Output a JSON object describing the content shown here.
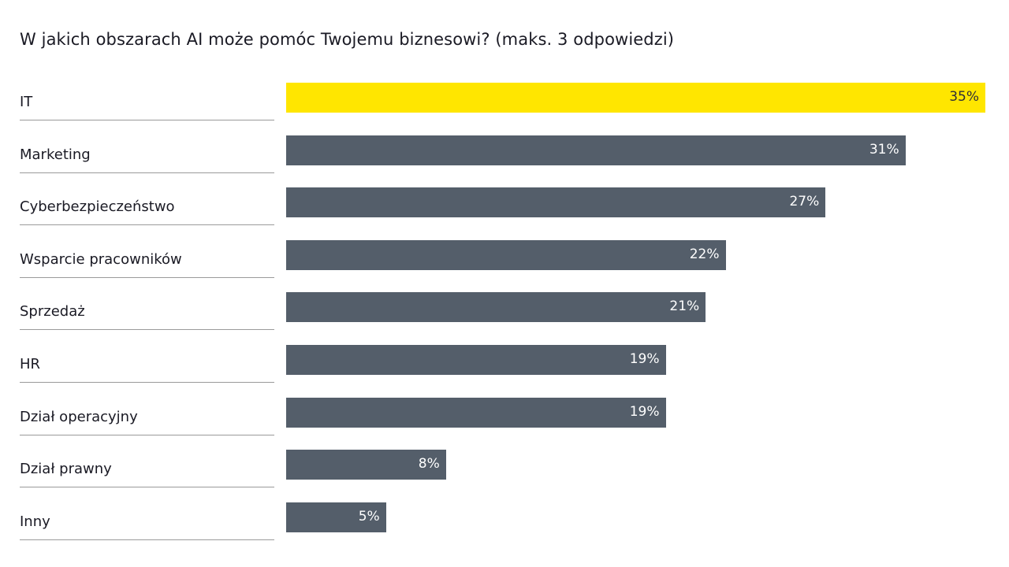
{
  "chart_data": {
    "type": "bar",
    "orientation": "horizontal",
    "title": "W jakich obszarach AI może pomóc Twojemu biznesowi? (maks. 3 odpowiedzi)",
    "categories": [
      "IT",
      "Marketing",
      "Cyberbezpieczeństwo",
      "Wsparcie pracowników",
      "Sprzedaż",
      "HR",
      "Dział operacyjny",
      "Dział prawny",
      "Inny"
    ],
    "values": [
      35,
      31,
      27,
      22,
      21,
      19,
      19,
      8,
      5
    ],
    "value_labels": [
      "35%",
      "31%",
      "27%",
      "22%",
      "21%",
      "19%",
      "19%",
      "8%",
      "5%"
    ],
    "xlim": [
      0,
      35
    ],
    "grid": false,
    "colors": {
      "highlight": "#FFE600",
      "default": "#545E6A"
    }
  }
}
